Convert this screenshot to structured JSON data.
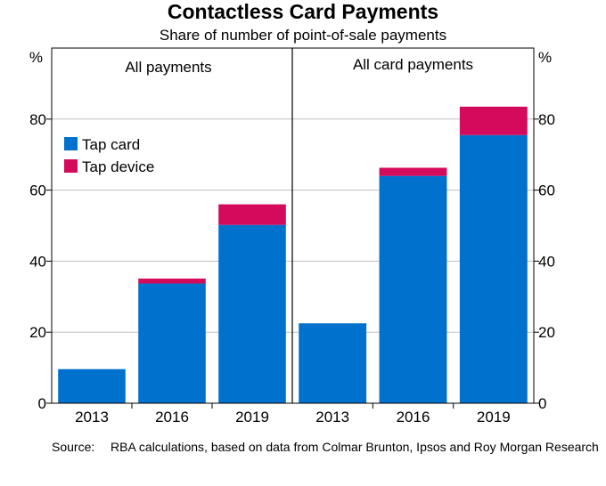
{
  "chart_data": {
    "type": "bar",
    "stacked": true,
    "title": "Contactless Card Payments",
    "subtitle": "Share of number of point-of-sale payments",
    "unit": "%",
    "ylim": [
      0,
      100
    ],
    "yticks": [
      0,
      20,
      40,
      60,
      80
    ],
    "grid": true,
    "legend": {
      "placement": "top-left of left panel",
      "entries": [
        "Tap card",
        "Tap device"
      ]
    },
    "colors": {
      "Tap card": "#0072CE",
      "Tap device": "#D40A5C",
      "grid": "#BFBFBF",
      "axis": "#000000"
    },
    "panels": [
      {
        "title": "All payments",
        "categories": [
          "2013",
          "2016",
          "2019"
        ],
        "series": [
          {
            "name": "Tap card",
            "values": [
              9.6,
              33.7,
              50.2
            ]
          },
          {
            "name": "Tap device",
            "values": [
              0,
              1.4,
              5.8
            ]
          }
        ]
      },
      {
        "title": "All card payments",
        "categories": [
          "2013",
          "2016",
          "2019"
        ],
        "series": [
          {
            "name": "Tap card",
            "values": [
              22.5,
              64.0,
              75.5
            ]
          },
          {
            "name": "Tap device",
            "values": [
              0,
              2.3,
              8.0
            ]
          }
        ]
      }
    ]
  },
  "source": {
    "label": "Source:",
    "text": "RBA calculations, based on data from Colmar Brunton, Ipsos and Roy Morgan Research"
  }
}
